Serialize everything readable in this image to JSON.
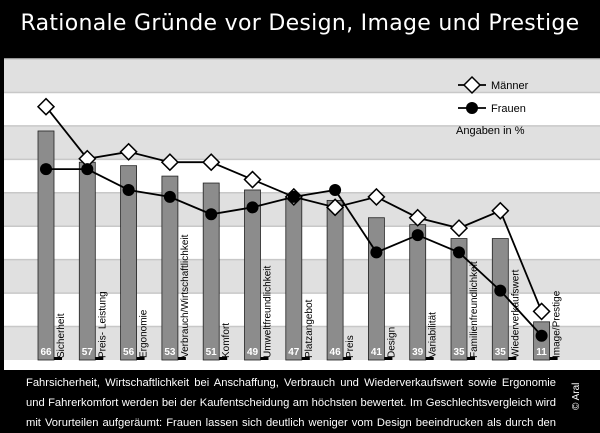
{
  "chart_data": {
    "type": "bar",
    "title": "Rationale Gründe vor Design, Image und Prestige",
    "unit_note": "Angaben in %",
    "categories": [
      "Sicherheit",
      "Preis- Leistung",
      "Ergonomie",
      "Verbrauch/Wirtschaftlichkeit",
      "Komfort",
      "Umweltfreundlichkeit",
      "Platzangebot",
      "Preis",
      "Design",
      "Variabilität",
      "Familienfreundlichkeit",
      "Wiederverkaufswert",
      "Image/Prestige"
    ],
    "values": [
      66,
      57,
      56,
      53,
      51,
      49,
      47,
      46,
      41,
      39,
      35,
      35,
      11
    ],
    "series": [
      {
        "name": "Männer",
        "type": "line",
        "marker": "diamond-open",
        "values": [
          73,
          58,
          60,
          57,
          57,
          52,
          47,
          44,
          47,
          41,
          38,
          43,
          14
        ]
      },
      {
        "name": "Frauen",
        "type": "line",
        "marker": "circle-filled",
        "values": [
          55,
          55,
          49,
          47,
          42,
          44,
          47,
          49,
          31,
          36,
          31,
          20,
          7
        ]
      }
    ],
    "legend_position": "top-right",
    "grid": "horizontal bands",
    "colors": {
      "bar": "#8c8c8c",
      "band": "#e0e0e0",
      "line": "#000000",
      "background": "#000000"
    }
  },
  "footer": {
    "text": "Fahrsicherheit, Wirtschaftlichkeit bei Anschaffung, Verbrauch und Wiederverkaufswert sowie Ergonomie und Fahrerkomfort werden bei der Kaufentscheidung am höchsten bewertet. Im Geschlechtsvergleich wird mit Vorurteilen aufgeräumt: Frauen lassen sich deutlich weniger vom Design beeindrucken als durch den Preis.",
    "credit": "© Aral"
  }
}
